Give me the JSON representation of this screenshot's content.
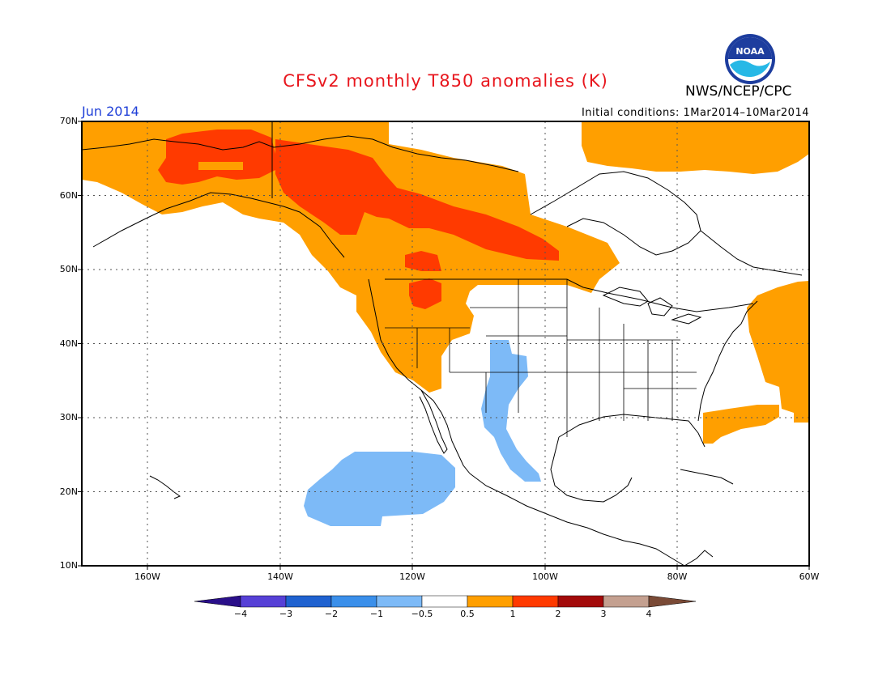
{
  "title": "CFSv2 monthly T850 anomalies (K)",
  "agency": "NWS/NCEP/CPC",
  "logo_text": "NOAA",
  "month_label": "Jun 2014",
  "initial_conditions": "Initial conditions: 1Mar2014–10Mar2014",
  "lat_labels": [
    "70N",
    "60N",
    "50N",
    "40N",
    "30N",
    "20N",
    "10N"
  ],
  "lon_labels": [
    "160W",
    "140W",
    "120W",
    "100W",
    "80W",
    "60W"
  ],
  "colorbar": {
    "tick_labels": [
      "−4",
      "−3",
      "−2",
      "−1",
      "−0.5",
      "0.5",
      "1",
      "2",
      "3",
      "4"
    ],
    "colors": [
      "#2a0f8a",
      "#5640d6",
      "#1f62d0",
      "#3a8fea",
      "#7dbaf7",
      "#ffffff",
      "#ff9f00",
      "#ff3a00",
      "#a30a0a",
      "#c4a090",
      "#7a4a36"
    ]
  },
  "anomaly_colors": {
    "warm_0_5_to_1": "#ff9f00",
    "warm_1_to_2": "#ff3a00",
    "cool_minus_1_to_minus_0_5": "#7dbaf7",
    "frame": "#000000"
  }
}
